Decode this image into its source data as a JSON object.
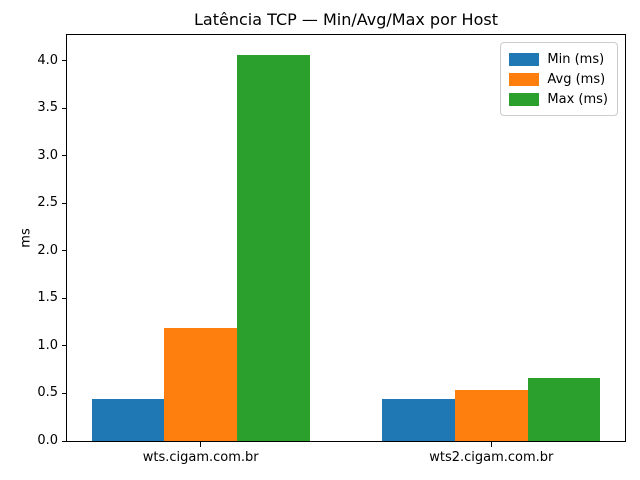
{
  "chart_data": {
    "type": "bar",
    "title": "Latência TCP — Min/Avg/Max por Host",
    "xlabel": "",
    "ylabel": "ms",
    "categories": [
      "wts.cigam.com.br",
      "wts2.cigam.com.br"
    ],
    "series": [
      {
        "name": "Min (ms)",
        "color": "#1f77b4",
        "values": [
          0.44,
          0.44
        ]
      },
      {
        "name": "Avg (ms)",
        "color": "#ff7f0e",
        "values": [
          1.19,
          0.54
        ]
      },
      {
        "name": "Max (ms)",
        "color": "#2ca02c",
        "values": [
          4.06,
          0.66
        ]
      }
    ],
    "ylim": [
      0,
      4.27
    ],
    "yticks": [
      "0.0",
      "0.5",
      "1.0",
      "1.5",
      "2.0",
      "2.5",
      "3.0",
      "3.5",
      "4.0"
    ],
    "grid": false,
    "legend_position": "upper right",
    "background_color": "#ffffff",
    "spine_color": "#000000"
  }
}
